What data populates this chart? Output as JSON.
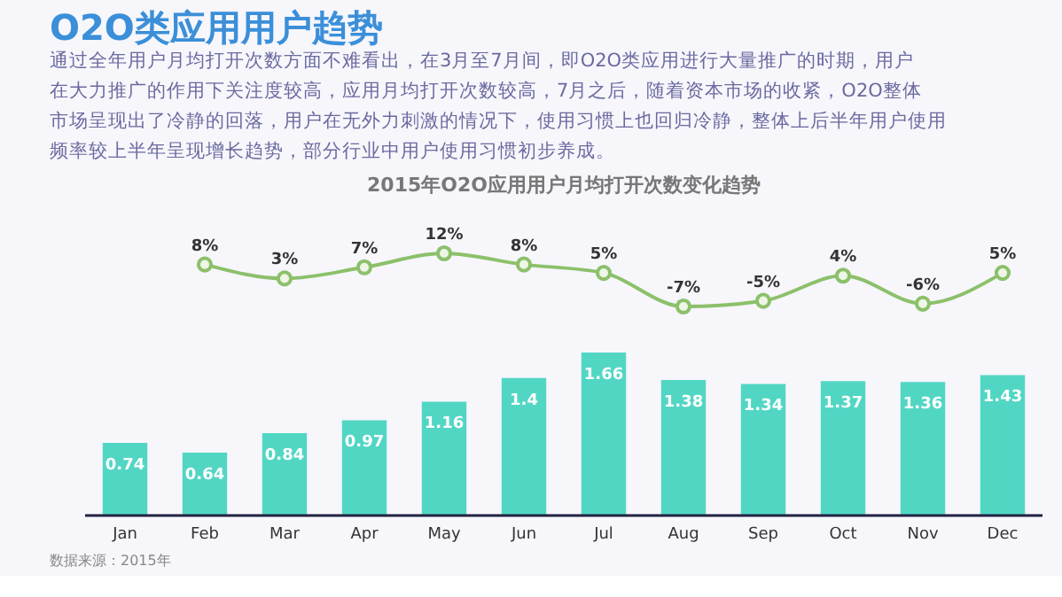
{
  "chart_data": [
    {
      "type": "line",
      "title": "O2O类应用用户趋势",
      "subtitle": "2015年O2O应用用户月均打开次数变化趋势",
      "annotations": [
        "通过全年用户月均打开次数方面不难看出，在3月至7月间，即O2O类应用进行大量推广的时期，用户在大力推广的作用下关注度较高，应用月均打开次数较高，7月之后，随着资本市场的收紧，O2O整体市场呈现出了冷静的回落，用户在无外力刺激的情况下，使用习惯上也回归冷静，整体上后半年用户使用频率较上半年呈现增长趋势，部分行业中用户使用习惯初步养成。"
      ],
      "categories": [
        null,
        null,
        null,
        null,
        null,
        null,
        null,
        null,
        null,
        null,
        null,
        null
      ],
      "series": [
        {
          "color": "#8cc06a",
          "values": [
            null,
            8,
            3,
            7,
            12,
            8,
            5,
            -7,
            -5,
            4,
            -6,
            5
          ],
          "value_labels": [
            null,
            "8%",
            "3%",
            "7%",
            "12%",
            "8%",
            "5%",
            "-7%",
            "-5%",
            "4%",
            "-6%",
            "5%"
          ]
        }
      ],
      "marker": "circle",
      "tick_labels": false,
      "grid": false
    },
    {
      "type": "bar",
      "annotations": [
        "数据来源：2015年"
      ],
      "categories": [
        "Jan",
        "Feb",
        "Mar",
        "Apr",
        "May",
        "Jun",
        "Jul",
        "Aug",
        "Sep",
        "Oct",
        "Nov",
        "Dec"
      ],
      "series": [
        {
          "color": "#52d6c4",
          "values": [
            0.74,
            0.64,
            0.84,
            0.97,
            1.16,
            1.4,
            1.66,
            1.38,
            1.34,
            1.37,
            1.36,
            1.43
          ],
          "value_labels": [
            "0.74",
            "0.64",
            "0.84",
            "0.97",
            "1.16",
            "1.4",
            "1.66",
            "1.38",
            "1.34",
            "1.37",
            "1.36",
            "1.43"
          ]
        }
      ],
      "tick_labels": "x",
      "grid": false
    }
  ]
}
